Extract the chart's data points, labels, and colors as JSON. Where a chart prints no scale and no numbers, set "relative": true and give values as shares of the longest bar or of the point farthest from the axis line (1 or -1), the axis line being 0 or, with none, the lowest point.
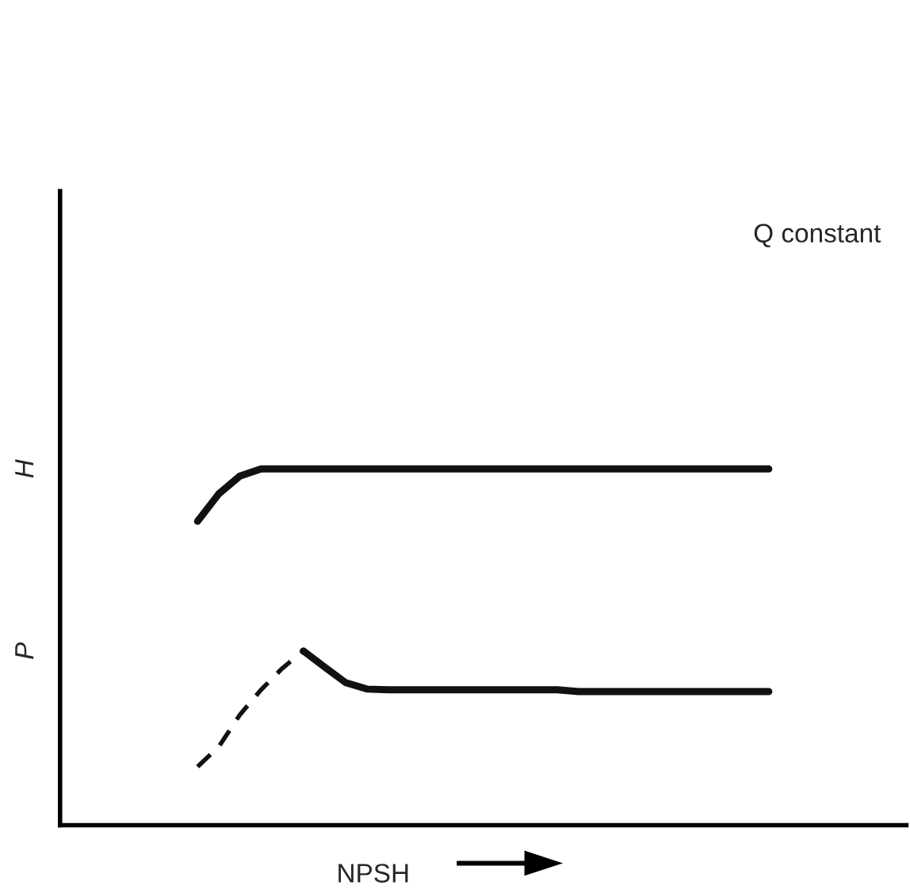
{
  "chart_data": {
    "type": "line",
    "relative": true,
    "xlabel": "NPSH",
    "annotations": [
      "Q constant",
      "H",
      "P"
    ],
    "categories": [
      null,
      null,
      null,
      null,
      null,
      null,
      null,
      null,
      null,
      null,
      null,
      null,
      null,
      null,
      null,
      null,
      null,
      null,
      null,
      null,
      null,
      null,
      null,
      null,
      null,
      null,
      null,
      null,
      null,
      null,
      null,
      null,
      null,
      null,
      null,
      null,
      null,
      null,
      null,
      null
    ],
    "series": [
      {
        "color": "#111111",
        "line_style": "solid",
        "values": [
          null,
          null,
          null,
          null,
          null,
          null,
          0.853,
          0.93,
          0.98,
          1,
          1,
          1,
          1,
          1,
          1,
          1,
          1,
          1,
          1,
          1,
          1,
          1,
          1,
          1,
          1,
          1,
          1,
          1,
          1,
          1,
          1,
          1,
          1,
          1,
          null,
          null,
          null,
          null,
          null,
          null
        ]
      },
      {
        "color": "#111111",
        "line_style": "dashed",
        "values": [
          null,
          null,
          null,
          null,
          null,
          null,
          0.164,
          0.22,
          0.31,
          0.38,
          0.44,
          0.489,
          null,
          null,
          null,
          null,
          null,
          null,
          null,
          null,
          null,
          null,
          null,
          null,
          null,
          null,
          null,
          null,
          null,
          null,
          null,
          null,
          null,
          null,
          null,
          null,
          null,
          null,
          null,
          null
        ]
      },
      {
        "color": "#111111",
        "line_style": "solid",
        "values": [
          null,
          null,
          null,
          null,
          null,
          null,
          null,
          null,
          null,
          null,
          null,
          0.489,
          0.444,
          0.4,
          0.382,
          0.38,
          0.38,
          0.38,
          0.38,
          0.38,
          0.38,
          0.38,
          0.38,
          0.38,
          0.375,
          0.375,
          0.375,
          0.375,
          0.375,
          0.375,
          0.375,
          0.375,
          0.375,
          0.375,
          null,
          null,
          null,
          null,
          null,
          null
        ]
      }
    ]
  }
}
